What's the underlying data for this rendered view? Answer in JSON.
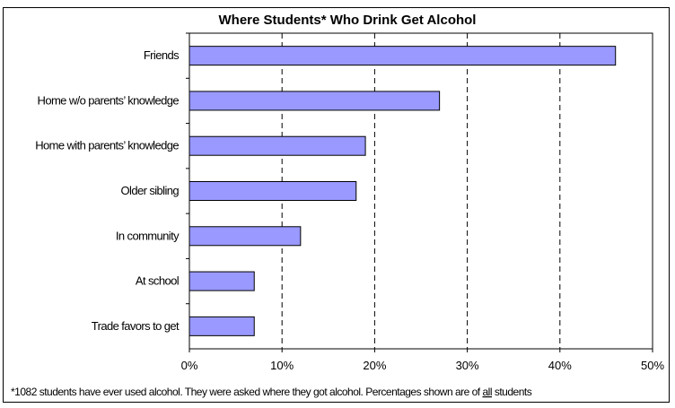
{
  "chart_data": {
    "type": "bar",
    "orientation": "horizontal",
    "title": "Where Students* Who Drink Get Alcohol",
    "categories": [
      "Friends",
      "Home w/o parents’ knowledge",
      "Home with parents’ knowledge",
      "Older sibling",
      "In community",
      "At school",
      "Trade favors to get"
    ],
    "values": [
      46,
      27,
      19,
      18,
      12,
      7,
      7
    ],
    "unit": "%",
    "xlim": [
      0,
      50
    ],
    "x_ticks": [
      "0%",
      "10%",
      "20%",
      "30%",
      "40%",
      "50%"
    ],
    "gridlines": "vertical dashed",
    "bar_color": "#9999ff",
    "footnote": {
      "before": "*1082 students have ever used alcohol.  They were asked where they got alcohol.  Percentages shown are of ",
      "underlined": "all",
      "after": " students"
    }
  }
}
